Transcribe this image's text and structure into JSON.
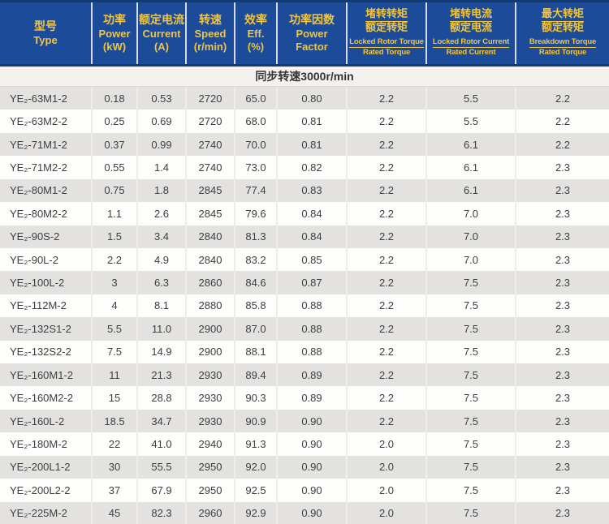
{
  "header": {
    "columns": [
      {
        "lines": [
          "型号",
          "Type"
        ]
      },
      {
        "lines": [
          "功率",
          "Power",
          "(kW)"
        ]
      },
      {
        "lines": [
          "额定电流",
          "Current",
          "(A)"
        ]
      },
      {
        "lines": [
          "转速",
          "Speed",
          "(r/min)"
        ]
      },
      {
        "lines": [
          "效率",
          "Eff.",
          "(%)"
        ]
      },
      {
        "lines": [
          "功率因数",
          "Power",
          "Factor"
        ]
      },
      {
        "zh_num": "堵转转矩",
        "zh_den": "额定转矩",
        "en_num": "Locked Rotor Torque",
        "en_den": "Rated Torque"
      },
      {
        "zh_num": "堵转电流",
        "zh_den": "额定电流",
        "en_num": "Locked Rotor Current",
        "en_den": "Rated Current"
      },
      {
        "zh_num": "最大转矩",
        "zh_den": "额定转矩",
        "en_num": "Breakdown Torque",
        "en_den": "Rated Torque"
      }
    ]
  },
  "section": {
    "subtitle": "同步转速3000r/min"
  },
  "colors": {
    "header_bg": "#1c4b99",
    "header_text": "#f2c53d",
    "row_gray": "#e3e2e0",
    "row_white": "#fdfdfb"
  },
  "chart_data": {
    "type": "table",
    "title": "同步转速3000r/min",
    "columns": [
      "型号 Type",
      "功率 Power (kW)",
      "额定电流 Current (A)",
      "转速 Speed (r/min)",
      "效率 Eff. (%)",
      "功率因数 Power Factor",
      "堵转转矩/额定转矩 Locked Rotor Torque/Rated Torque",
      "堵转电流/额定电流 Locked Rotor Current/Rated Current",
      "最大转矩/额定转矩 Breakdown Torque/Rated Torque"
    ],
    "rows": [
      [
        "YE₂-63M1-2",
        "0.18",
        "0.53",
        "2720",
        "65.0",
        "0.80",
        "2.2",
        "5.5",
        "2.2"
      ],
      [
        "YE₂-63M2-2",
        "0.25",
        "0.69",
        "2720",
        "68.0",
        "0.81",
        "2.2",
        "5.5",
        "2.2"
      ],
      [
        "YE₂-71M1-2",
        "0.37",
        "0.99",
        "2740",
        "70.0",
        "0.81",
        "2.2",
        "6.1",
        "2.2"
      ],
      [
        "YE₂-71M2-2",
        "0.55",
        "1.4",
        "2740",
        "73.0",
        "0.82",
        "2.2",
        "6.1",
        "2.3"
      ],
      [
        "YE₂-80M1-2",
        "0.75",
        "1.8",
        "2845",
        "77.4",
        "0.83",
        "2.2",
        "6.1",
        "2.3"
      ],
      [
        "YE₂-80M2-2",
        "1.1",
        "2.6",
        "2845",
        "79.6",
        "0.84",
        "2.2",
        "7.0",
        "2.3"
      ],
      [
        "YE₂-90S-2",
        "1.5",
        "3.4",
        "2840",
        "81.3",
        "0.84",
        "2.2",
        "7.0",
        "2.3"
      ],
      [
        "YE₂-90L-2",
        "2.2",
        "4.9",
        "2840",
        "83.2",
        "0.85",
        "2.2",
        "7.0",
        "2.3"
      ],
      [
        "YE₂-100L-2",
        "3",
        "6.3",
        "2860",
        "84.6",
        "0.87",
        "2.2",
        "7.5",
        "2.3"
      ],
      [
        "YE₂-112M-2",
        "4",
        "8.1",
        "2880",
        "85.8",
        "0.88",
        "2.2",
        "7.5",
        "2.3"
      ],
      [
        "YE₂-132S1-2",
        "5.5",
        "11.0",
        "2900",
        "87.0",
        "0.88",
        "2.2",
        "7.5",
        "2.3"
      ],
      [
        "YE₂-132S2-2",
        "7.5",
        "14.9",
        "2900",
        "88.1",
        "0.88",
        "2.2",
        "7.5",
        "2.3"
      ],
      [
        "YE₂-160M1-2",
        "11",
        "21.3",
        "2930",
        "89.4",
        "0.89",
        "2.2",
        "7.5",
        "2.3"
      ],
      [
        "YE₂-160M2-2",
        "15",
        "28.8",
        "2930",
        "90.3",
        "0.89",
        "2.2",
        "7.5",
        "2.3"
      ],
      [
        "YE₂-160L-2",
        "18.5",
        "34.7",
        "2930",
        "90.9",
        "0.90",
        "2.2",
        "7.5",
        "2.3"
      ],
      [
        "YE₂-180M-2",
        "22",
        "41.0",
        "2940",
        "91.3",
        "0.90",
        "2.0",
        "7.5",
        "2.3"
      ],
      [
        "YE₂-200L1-2",
        "30",
        "55.5",
        "2950",
        "92.0",
        "0.90",
        "2.0",
        "7.5",
        "2.3"
      ],
      [
        "YE₂-200L2-2",
        "37",
        "67.9",
        "2950",
        "92.5",
        "0.90",
        "2.0",
        "7.5",
        "2.3"
      ],
      [
        "YE₂-225M-2",
        "45",
        "82.3",
        "2960",
        "92.9",
        "0.90",
        "2.0",
        "7.5",
        "2.3"
      ]
    ]
  }
}
